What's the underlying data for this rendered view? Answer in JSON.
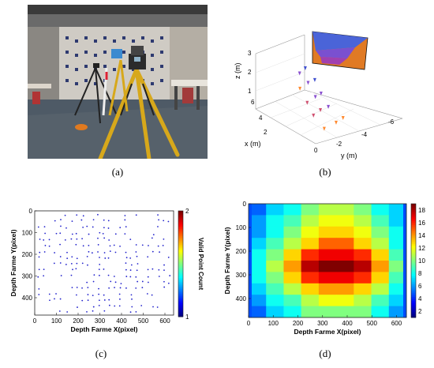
{
  "captions": [
    "(a)",
    "(b)",
    "(c)",
    "(d)"
  ],
  "photo": {
    "description_icon": "lab-photo-icon"
  },
  "chart_data": [
    {
      "type": "scatter3d",
      "panel": "b",
      "xlabel": "x (m)",
      "ylabel": "y (m)",
      "zlabel": "z (m)",
      "x_ticks": [
        "2",
        "4",
        "6"
      ],
      "y_ticks": [
        "0",
        "-2",
        "-4",
        "-6"
      ],
      "z_ticks": [
        "1",
        "2",
        "3"
      ],
      "x_range": [
        1,
        7
      ],
      "y_range": [
        0.5,
        -6.5
      ],
      "z_range": [
        0,
        3.3
      ],
      "points": [
        {
          "x": 2.0,
          "y": -1.0,
          "z": 0.2,
          "color": "#ff8a30"
        },
        {
          "x": 2.3,
          "y": -2.2,
          "z": 0.2,
          "color": "#ff8a30"
        },
        {
          "x": 2.6,
          "y": -3.0,
          "z": 0.2,
          "color": "#ff8a30"
        },
        {
          "x": 3.2,
          "y": -1.1,
          "z": 0.55,
          "color": "#d05070"
        },
        {
          "x": 3.5,
          "y": -1.9,
          "z": 0.6,
          "color": "#d05070"
        },
        {
          "x": 3.7,
          "y": -2.7,
          "z": 0.55,
          "color": "#8a50d0"
        },
        {
          "x": 4.2,
          "y": -1.4,
          "z": 0.9,
          "color": "#d05070"
        },
        {
          "x": 4.5,
          "y": -2.3,
          "z": 0.95,
          "color": "#8a50d0"
        },
        {
          "x": 4.8,
          "y": -3.0,
          "z": 0.9,
          "color": "#8a50d0"
        },
        {
          "x": 5.3,
          "y": -1.7,
          "z": 1.3,
          "color": "#ff8a30"
        },
        {
          "x": 5.6,
          "y": -2.6,
          "z": 1.35,
          "color": "#8a50d0"
        },
        {
          "x": 5.8,
          "y": -3.3,
          "z": 1.3,
          "color": "#4050d0"
        },
        {
          "x": 6.2,
          "y": -2.4,
          "z": 1.75,
          "color": "#8a50d0"
        },
        {
          "x": 6.5,
          "y": -3.1,
          "z": 1.8,
          "color": "#4050d0"
        }
      ]
    },
    {
      "type": "scatter",
      "panel": "c",
      "xlabel": "Depth Farme X(pixel)",
      "ylabel": "Depth Farme Y(pixel)",
      "colorbar_label": "Valid Point Count",
      "xlim": [
        0,
        640
      ],
      "ylim": [
        0,
        480
      ],
      "x_ticks": [
        0,
        100,
        200,
        300,
        400,
        500,
        600
      ],
      "y_ticks": [
        0,
        100,
        200,
        300,
        400
      ],
      "colorbar_ticks": [
        1,
        2
      ],
      "point_color": "#2222cc",
      "grid_cols": [
        20,
        45,
        70,
        95,
        120,
        145,
        170,
        195,
        220,
        245,
        270,
        295,
        320,
        345,
        370,
        395,
        420,
        445,
        470,
        495,
        520,
        545,
        570,
        595,
        620
      ],
      "grid_rows": [
        20,
        45,
        75,
        105,
        130,
        160,
        190,
        215,
        245,
        270,
        300,
        330,
        355,
        385,
        410,
        440,
        465
      ],
      "density_center": [
        320,
        230
      ],
      "density": 0.55
    },
    {
      "type": "heatmap",
      "panel": "d",
      "xlabel": "Depth Farme X(pixel)",
      "ylabel": "Depth Farme Y(pixel)",
      "colorbar_label": "Valid Point Count",
      "xlim": [
        0,
        640
      ],
      "ylim": [
        0,
        480
      ],
      "x_ticks": [
        0,
        100,
        200,
        300,
        400,
        500,
        600
      ],
      "y_ticks": [
        0,
        100,
        200,
        300,
        400
      ],
      "colorbar_ticks": [
        2,
        4,
        6,
        8,
        10,
        12,
        14,
        16,
        18
      ],
      "vmin": 1,
      "vmax": 19,
      "cols": 9,
      "rows": 10,
      "values": [
        [
          5,
          7,
          8,
          10,
          11,
          11,
          10,
          8,
          7
        ],
        [
          6,
          8,
          9,
          11,
          12,
          12,
          11,
          9,
          7
        ],
        [
          6,
          8,
          10,
          12,
          13,
          13,
          12,
          10,
          8
        ],
        [
          7,
          9,
          11,
          13,
          15,
          15,
          13,
          11,
          8
        ],
        [
          8,
          10,
          13,
          16,
          17,
          17,
          16,
          13,
          9
        ],
        [
          8,
          11,
          14,
          18,
          19,
          19,
          18,
          14,
          10
        ],
        [
          8,
          10,
          13,
          16,
          17,
          17,
          16,
          13,
          9
        ],
        [
          7,
          9,
          11,
          13,
          14,
          14,
          13,
          11,
          8
        ],
        [
          6,
          8,
          9,
          11,
          12,
          12,
          11,
          9,
          7
        ],
        [
          5,
          7,
          8,
          10,
          10,
          10,
          10,
          8,
          6
        ]
      ]
    }
  ]
}
